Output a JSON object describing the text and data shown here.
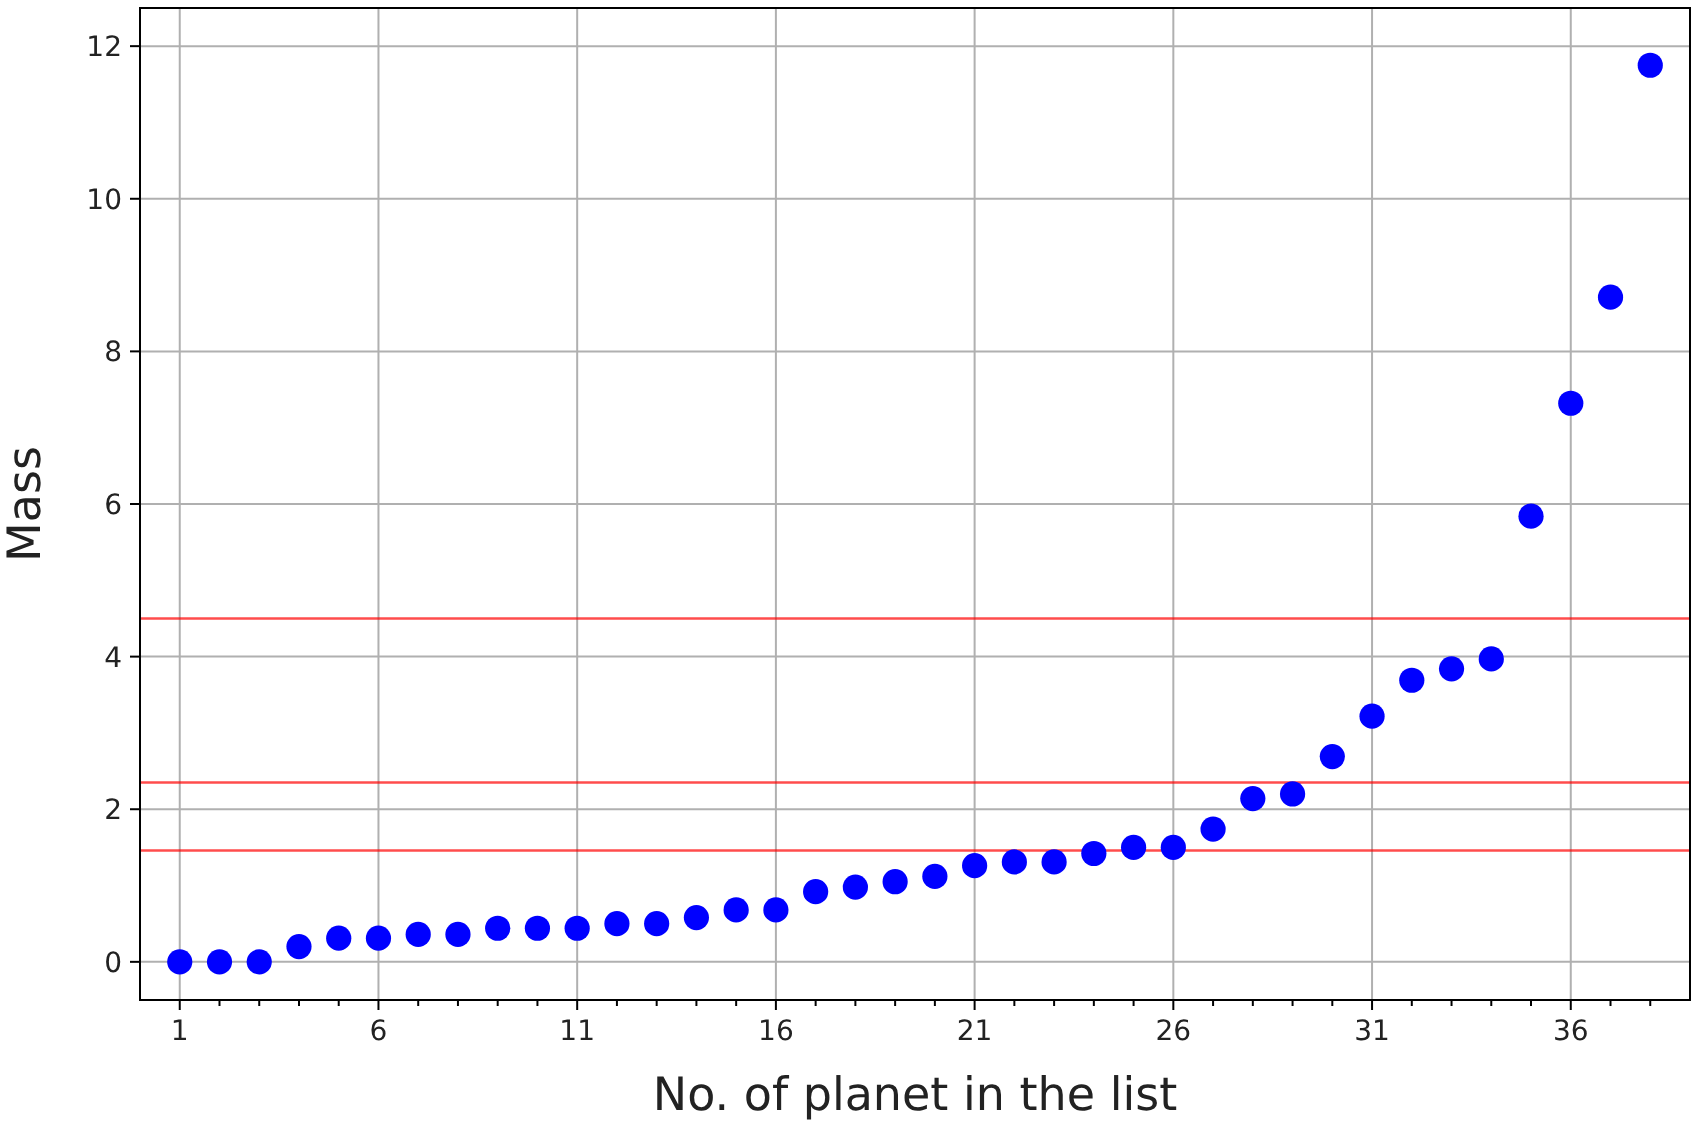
{
  "chart_data": {
    "type": "scatter",
    "xlabel": "No. of planet in the list",
    "ylabel": "Mass",
    "x": [
      1,
      2,
      3,
      4,
      5,
      6,
      7,
      8,
      9,
      10,
      11,
      12,
      13,
      14,
      15,
      16,
      17,
      18,
      19,
      20,
      21,
      22,
      23,
      24,
      25,
      26,
      27,
      28,
      29,
      30,
      31,
      32,
      33,
      34,
      35,
      36,
      37,
      38
    ],
    "series": [
      {
        "color": "#0000ff",
        "values": [
          0,
          0,
          0,
          0.2,
          0.31,
          0.31,
          0.36,
          0.36,
          0.44,
          0.44,
          0.44,
          0.5,
          0.5,
          0.58,
          0.68,
          0.68,
          0.92,
          0.98,
          1.05,
          1.12,
          1.26,
          1.31,
          1.31,
          1.42,
          1.5,
          1.5,
          1.74,
          2.14,
          2.2,
          2.69,
          3.22,
          3.69,
          3.84,
          3.97,
          5.84,
          7.32,
          8.71,
          11.75
        ]
      }
    ],
    "marker": "circle",
    "grid": true,
    "xlim": [
      0,
      39
    ],
    "ylim": [
      -0.5,
      12.5
    ],
    "xticks": [
      1,
      {
        "value": 2,
        "label": null
      },
      {
        "value": 3,
        "label": null
      },
      {
        "value": 4,
        "label": null
      },
      {
        "value": 5,
        "label": null
      },
      6,
      {
        "value": 7,
        "label": null
      },
      {
        "value": 8,
        "label": null
      },
      {
        "value": 9,
        "label": null
      },
      {
        "value": 10,
        "label": null
      },
      11,
      {
        "value": 12,
        "label": null
      },
      {
        "value": 13,
        "label": null
      },
      {
        "value": 14,
        "label": null
      },
      {
        "value": 15,
        "label": null
      },
      16,
      {
        "value": 17,
        "label": null
      },
      {
        "value": 18,
        "label": null
      },
      {
        "value": 19,
        "label": null
      },
      {
        "value": 20,
        "label": null
      },
      21,
      {
        "value": 22,
        "label": null
      },
      {
        "value": 23,
        "label": null
      },
      {
        "value": 24,
        "label": null
      },
      {
        "value": 25,
        "label": null
      },
      26,
      {
        "value": 27,
        "label": null
      },
      {
        "value": 28,
        "label": null
      },
      {
        "value": 29,
        "label": null
      },
      {
        "value": 30,
        "label": null
      },
      31,
      {
        "value": 32,
        "label": null
      },
      {
        "value": 33,
        "label": null
      },
      {
        "value": 34,
        "label": null
      },
      {
        "value": 35,
        "label": null
      },
      36,
      {
        "value": 37,
        "label": null
      },
      {
        "value": 38,
        "label": null
      }
    ],
    "yticks": [
      0,
      2,
      4,
      6,
      8,
      10,
      12
    ],
    "ref_lines": [
      {
        "axis": "y",
        "value": 4.5,
        "color": "#ff0000"
      },
      {
        "axis": "y",
        "value": 2.35,
        "color": "#ff0000"
      },
      {
        "axis": "y",
        "value": 1.46,
        "color": "#ff0000"
      }
    ]
  }
}
